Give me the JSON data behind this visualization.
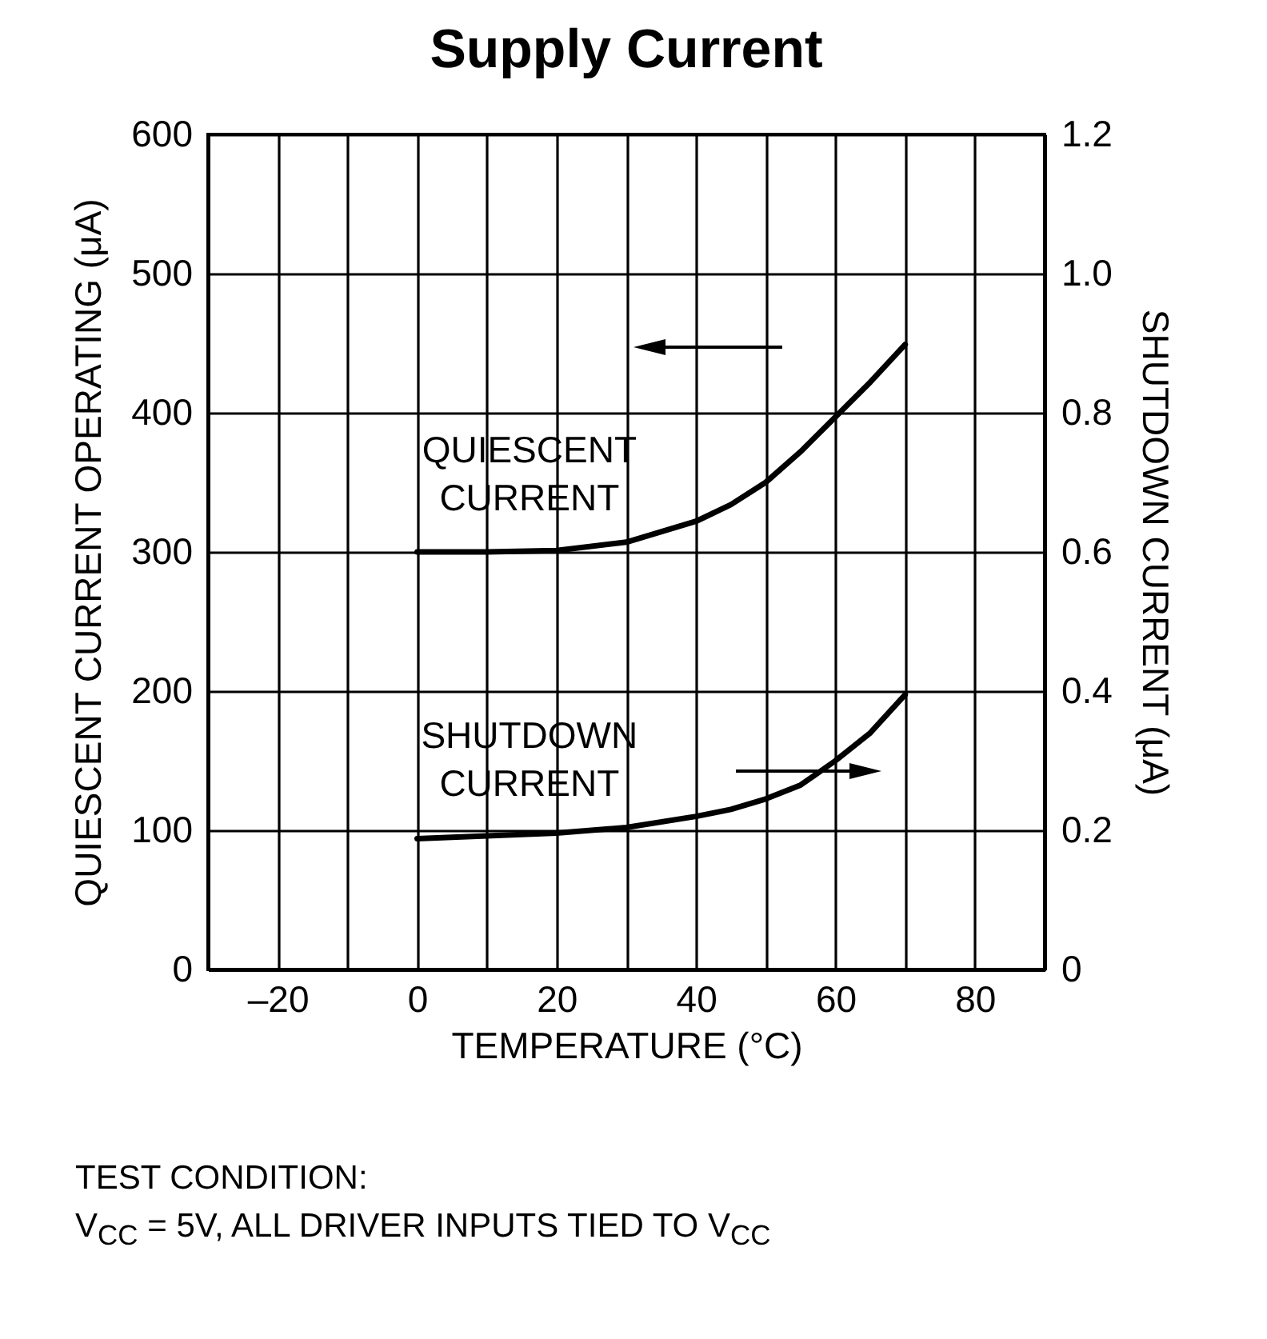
{
  "chart_data": {
    "type": "line",
    "title": "Supply Current",
    "xlabel": "TEMPERATURE (°C)",
    "ylabel": "QUIESCENT CURRENT OPERATING (μA)",
    "y2label": "SHUTDOWN CURRENT (μA)",
    "x": [
      0,
      10,
      20,
      30,
      40,
      45,
      50,
      55,
      60,
      65,
      70
    ],
    "series": [
      {
        "name": "QUIESCENT CURRENT",
        "color": "#000000",
        "values": [
          300,
          300,
          301,
          307,
          322,
          334,
          350,
          372,
          397,
          422,
          449
        ]
      },
      {
        "name": "SHUTDOWN CURRENT",
        "color": "#000000",
        "axis": "y2",
        "values": [
          0.188,
          0.192,
          0.196,
          0.204,
          0.22,
          0.23,
          0.245,
          0.265,
          0.3,
          0.34,
          0.395
        ]
      }
    ],
    "xlim": [
      -30,
      90
    ],
    "xticks": [
      {
        "value": -20,
        "label": "–20"
      },
      {
        "value": -10,
        "label": null
      },
      0,
      {
        "value": 10,
        "label": null
      },
      20,
      {
        "value": 30,
        "label": null
      },
      40,
      {
        "value": 50,
        "label": null
      },
      60,
      {
        "value": 70,
        "label": null
      },
      80
    ],
    "ylim": [
      0,
      600
    ],
    "yticks": [
      0,
      100,
      200,
      300,
      400,
      500,
      600
    ],
    "y2lim": [
      0,
      1.2
    ],
    "y2ticks": [
      0,
      0.2,
      0.4,
      0.6,
      0.8,
      {
        "value": 1,
        "label": "1.0"
      },
      1.2
    ],
    "grid": true,
    "marker": "none",
    "line_style": "solid",
    "annotations": [
      "TEST CONDITION:",
      "V$_{CC}$ = 5V, ALL DRIVER INPUTS TIED TO V$_{CC}$"
    ]
  }
}
